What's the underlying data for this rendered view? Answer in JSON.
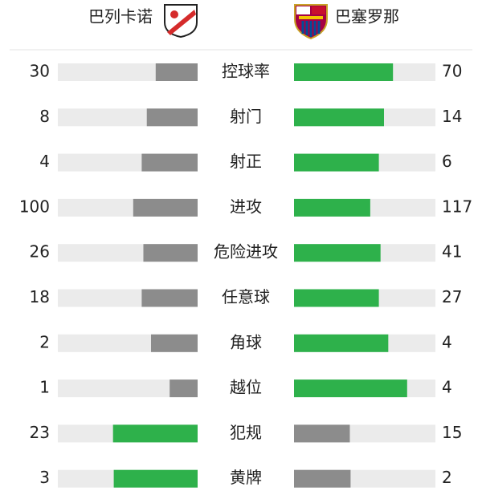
{
  "header": {
    "home": "巴列卡诺",
    "away": "巴塞罗那"
  },
  "colors": {
    "leading": "#2eb14b",
    "trailing": "#8c8c8c",
    "track": "#ebebeb"
  },
  "stats": [
    {
      "label": "控球率",
      "home": 30,
      "away": 70
    },
    {
      "label": "射门",
      "home": 8,
      "away": 14
    },
    {
      "label": "射正",
      "home": 4,
      "away": 6
    },
    {
      "label": "进攻",
      "home": 100,
      "away": 117
    },
    {
      "label": "危险进攻",
      "home": 26,
      "away": 41
    },
    {
      "label": "任意球",
      "home": 18,
      "away": 27
    },
    {
      "label": "角球",
      "home": 2,
      "away": 4
    },
    {
      "label": "越位",
      "home": 1,
      "away": 4
    },
    {
      "label": "犯规",
      "home": 23,
      "away": 15
    },
    {
      "label": "黄牌",
      "home": 3,
      "away": 2
    }
  ]
}
